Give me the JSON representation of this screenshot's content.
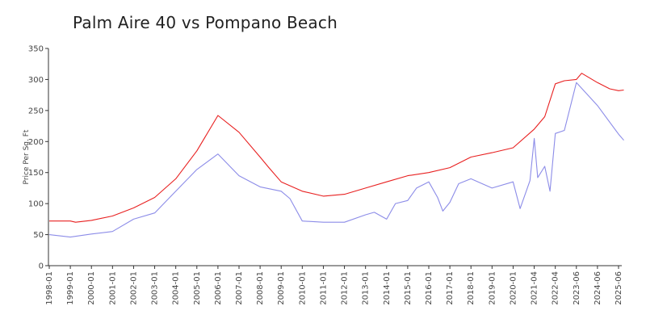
{
  "chart_data": {
    "type": "line",
    "title": "Palm Aire 40 vs Pompano Beach",
    "xlabel": "",
    "ylabel": "Price Per Sq. Ft",
    "ylim": [
      0,
      350
    ],
    "yticks": [
      0,
      50,
      100,
      150,
      200,
      250,
      300,
      350
    ],
    "grid": false,
    "legend": "none",
    "x_tick_labels": [
      "1998-01",
      "1999-01",
      "2000-01",
      "2001-01",
      "2002-01",
      "2003-01",
      "2004-01",
      "2005-01",
      "2006-01",
      "2007-01",
      "2008-01",
      "2009-01",
      "2010-01",
      "2011-01",
      "2012-01",
      "2013-01",
      "2014-01",
      "2015-01",
      "2016-01",
      "2017-01",
      "2018-01",
      "2019-01",
      "2020-01",
      "2021-04",
      "2022-04",
      "2023-06",
      "2024-06",
      "2025-06"
    ],
    "series": [
      {
        "color": "#e82020",
        "points": [
          [
            "1998-01",
            72
          ],
          [
            "1999-01",
            72
          ],
          [
            "1999-04",
            70
          ],
          [
            "2000-01",
            73
          ],
          [
            "2001-01",
            80
          ],
          [
            "2002-01",
            93
          ],
          [
            "2003-01",
            110
          ],
          [
            "2004-01",
            140
          ],
          [
            "2005-01",
            185
          ],
          [
            "2006-01",
            242
          ],
          [
            "2007-01",
            215
          ],
          [
            "2008-01",
            175
          ],
          [
            "2008-06",
            158
          ],
          [
            "2009-01",
            135
          ],
          [
            "2010-01",
            120
          ],
          [
            "2011-01",
            112
          ],
          [
            "2012-01",
            115
          ],
          [
            "2013-01",
            125
          ],
          [
            "2014-01",
            135
          ],
          [
            "2015-01",
            145
          ],
          [
            "2016-01",
            150
          ],
          [
            "2017-01",
            158
          ],
          [
            "2018-01",
            175
          ],
          [
            "2019-01",
            182
          ],
          [
            "2020-01",
            190
          ],
          [
            "2021-04",
            220
          ],
          [
            "2021-10",
            240
          ],
          [
            "2022-04",
            293
          ],
          [
            "2022-10",
            298
          ],
          [
            "2023-06",
            300
          ],
          [
            "2023-09",
            310
          ],
          [
            "2024-06",
            295
          ],
          [
            "2025-01",
            285
          ],
          [
            "2025-06",
            282
          ],
          [
            "2025-09",
            283
          ]
        ]
      },
      {
        "color": "#8c8ce8",
        "points": [
          [
            "1998-01",
            50
          ],
          [
            "1999-01",
            46
          ],
          [
            "2000-01",
            51
          ],
          [
            "2001-01",
            55
          ],
          [
            "2002-01",
            75
          ],
          [
            "2003-01",
            85
          ],
          [
            "2004-01",
            120
          ],
          [
            "2005-01",
            155
          ],
          [
            "2006-01",
            180
          ],
          [
            "2007-01",
            145
          ],
          [
            "2008-01",
            127
          ],
          [
            "2009-01",
            120
          ],
          [
            "2009-06",
            108
          ],
          [
            "2010-01",
            72
          ],
          [
            "2011-01",
            70
          ],
          [
            "2012-01",
            70
          ],
          [
            "2013-01",
            82
          ],
          [
            "2013-06",
            86
          ],
          [
            "2014-01",
            75
          ],
          [
            "2014-06",
            100
          ],
          [
            "2015-01",
            105
          ],
          [
            "2015-06",
            125
          ],
          [
            "2016-01",
            135
          ],
          [
            "2016-06",
            110
          ],
          [
            "2016-09",
            88
          ],
          [
            "2017-01",
            102
          ],
          [
            "2017-06",
            132
          ],
          [
            "2018-01",
            140
          ],
          [
            "2019-01",
            125
          ],
          [
            "2020-01",
            135
          ],
          [
            "2020-06",
            92
          ],
          [
            "2021-01",
            137
          ],
          [
            "2021-04",
            205
          ],
          [
            "2021-06",
            142
          ],
          [
            "2021-10",
            160
          ],
          [
            "2022-01",
            120
          ],
          [
            "2022-04",
            213
          ],
          [
            "2022-10",
            218
          ],
          [
            "2023-06",
            295
          ],
          [
            "2024-06",
            258
          ],
          [
            "2025-06",
            212
          ],
          [
            "2025-09",
            202
          ]
        ]
      }
    ]
  }
}
